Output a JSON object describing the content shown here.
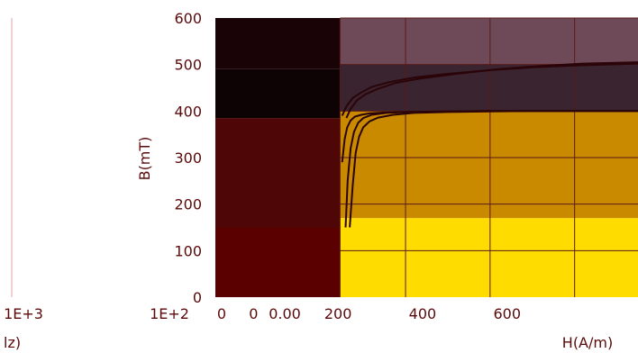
{
  "chart_data": {
    "type": "line",
    "xlabel": "H(A/m)",
    "ylabel": "B(mT)",
    "left_axis_partial_label": "lz)",
    "xlim": [
      -150,
      850
    ],
    "ylim": [
      0,
      600
    ],
    "y_ticks": [
      "0",
      "100",
      "200",
      "300",
      "400",
      "500",
      "600"
    ],
    "x_ticks": [
      {
        "value": 0,
        "label": "0"
      },
      {
        "value": 200,
        "label": "200"
      },
      {
        "value": 400,
        "label": "400"
      },
      {
        "value": 600,
        "label": "600"
      }
    ],
    "left_axis_tick_labels": [
      "1E+3",
      "1E+2"
    ],
    "garbled_tick_labels": [
      "0",
      "0.00"
    ],
    "background_bands": [
      {
        "x_from": -150,
        "x_to": 145,
        "y_from": 0,
        "y_to": 150,
        "color": "#5a0000"
      },
      {
        "x_from": -150,
        "x_to": 145,
        "y_from": 150,
        "y_to": 385,
        "color": "#4e0606"
      },
      {
        "x_from": -150,
        "x_to": 145,
        "y_from": 385,
        "y_to": 490,
        "color": "#0d0204"
      },
      {
        "x_from": -150,
        "x_to": 145,
        "y_from": 490,
        "y_to": 600,
        "color": "#1a0306"
      },
      {
        "x_from": 145,
        "x_to": 850,
        "y_from": 0,
        "y_to": 170,
        "color": "#ffdc00"
      },
      {
        "x_from": 145,
        "x_to": 850,
        "y_from": 170,
        "y_to": 400,
        "color": "#c98a00"
      },
      {
        "x_from": 145,
        "x_to": 850,
        "y_from": 400,
        "y_to": 500,
        "color": "#3a2430"
      },
      {
        "x_from": 145,
        "x_to": 850,
        "y_from": 500,
        "y_to": 600,
        "color": "#6e4a58"
      }
    ],
    "series": [
      {
        "values_x": [
          150,
          156,
          162,
          170,
          180,
          195,
          215,
          250,
          300,
          400,
          500,
          600,
          700,
          850
        ],
        "values_y": [
          290,
          340,
          365,
          380,
          388,
          392,
          395,
          397,
          398,
          399,
          400,
          400,
          400,
          400
        ]
      },
      {
        "values_x": [
          158,
          163,
          170,
          178,
          188,
          200,
          220,
          255,
          300,
          400,
          500,
          600,
          700,
          850
        ],
        "values_y": [
          150,
          250,
          320,
          355,
          375,
          385,
          392,
          396,
          398,
          399,
          400,
          400,
          400,
          400
        ]
      },
      {
        "values_x": [
          168,
          175,
          182,
          190,
          200,
          215,
          235,
          270,
          320,
          400,
          500,
          600,
          700,
          850
        ],
        "values_y": [
          150,
          240,
          310,
          345,
          365,
          378,
          386,
          392,
          396,
          398,
          399,
          400,
          400,
          400
        ]
      },
      {
        "values_x": [
          150,
          160,
          175,
          195,
          220,
          260,
          320,
          400,
          500,
          600,
          700,
          850
        ],
        "values_y": [
          390,
          410,
          428,
          440,
          452,
          462,
          472,
          480,
          488,
          494,
          498,
          502
        ]
      },
      {
        "values_x": [
          160,
          170,
          185,
          205,
          235,
          275,
          335,
          420,
          520,
          620,
          720,
          850
        ],
        "values_y": [
          385,
          405,
          423,
          436,
          448,
          460,
          470,
          480,
          490,
          497,
          502,
          505
        ]
      }
    ]
  }
}
